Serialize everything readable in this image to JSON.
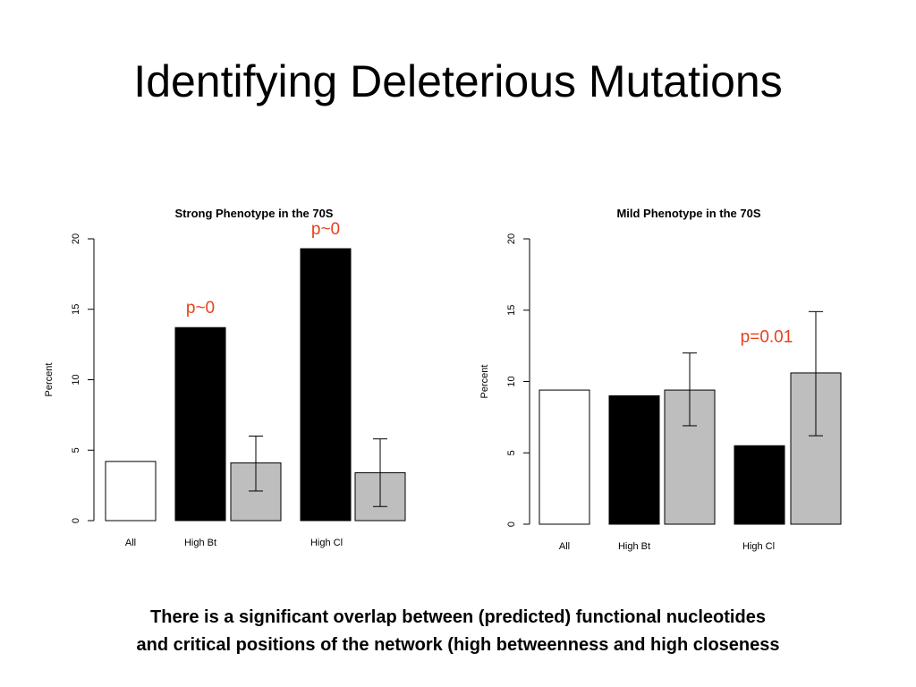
{
  "slide": {
    "title": "Identifying Deleterious Mutations",
    "caption_line1": "There is a significant overlap  between (predicted)  functional nucleotides",
    "caption_line2": "and critical positions of the network (high betweenness and high closeness"
  },
  "colors": {
    "white_bar": "#ffffff",
    "black_bar": "#000000",
    "gray_bar": "#bebebe",
    "annotation": "#e8401c"
  },
  "chart_data": [
    {
      "type": "bar",
      "title": "Strong Phenotype in the 70S",
      "ylabel": "Percent",
      "ylim": [
        0,
        20
      ],
      "yticks": [
        0,
        5,
        10,
        15,
        20
      ],
      "category_labels": [
        "All",
        "High Bt",
        "High Cl"
      ],
      "bars": [
        {
          "group": "All",
          "kind": "white",
          "value": 4.2
        },
        {
          "group": "High Bt",
          "kind": "black",
          "value": 13.7
        },
        {
          "group": "High Bt",
          "kind": "gray",
          "value": 4.1,
          "err_low": 2.1,
          "err_high": 6.0
        },
        {
          "group": "High Cl",
          "kind": "black",
          "value": 19.3
        },
        {
          "group": "High Cl",
          "kind": "gray",
          "value": 3.4,
          "err_low": 1.0,
          "err_high": 5.8
        }
      ],
      "annotations": [
        {
          "text": "p~0",
          "bar": 1
        },
        {
          "text": "p~0",
          "bar": 3
        }
      ]
    },
    {
      "type": "bar",
      "title": "Mild Phenotype in the 70S",
      "ylabel": "Percent",
      "ylim": [
        0,
        20
      ],
      "yticks": [
        0,
        5,
        10,
        15,
        20
      ],
      "category_labels": [
        "All",
        "High Bt",
        "High Cl"
      ],
      "bars": [
        {
          "group": "All",
          "kind": "white",
          "value": 9.4
        },
        {
          "group": "High Bt",
          "kind": "black",
          "value": 9.0
        },
        {
          "group": "High Bt",
          "kind": "gray",
          "value": 9.4,
          "err_low": 6.9,
          "err_high": 12.0
        },
        {
          "group": "High Cl",
          "kind": "black",
          "value": 5.5
        },
        {
          "group": "High Cl",
          "kind": "gray",
          "value": 10.6,
          "err_low": 6.2,
          "err_high": 14.9
        }
      ],
      "annotations": [
        {
          "text": "p=0.01",
          "bar": 4
        }
      ]
    }
  ]
}
